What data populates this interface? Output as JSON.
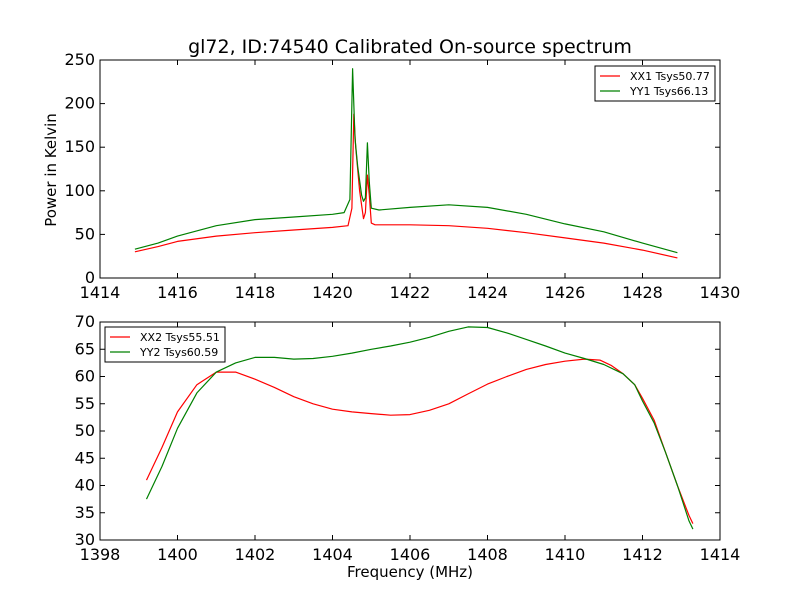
{
  "chart_data": [
    {
      "type": "line",
      "title": "gl72, ID:74540 Calibrated On-source spectrum",
      "xlabel": "",
      "ylabel": "Power in Kelvin",
      "xlim": [
        1414,
        1430
      ],
      "ylim": [
        0,
        250
      ],
      "xticks": [
        1414,
        1416,
        1418,
        1420,
        1422,
        1424,
        1426,
        1428,
        1430
      ],
      "yticks": [
        0,
        50,
        100,
        150,
        200,
        250
      ],
      "legend_position": "top-right",
      "grid": false,
      "series": [
        {
          "name": "XX1 Tsys50.77",
          "color": "#ff0000",
          "points": [
            [
              1414.9,
              30
            ],
            [
              1415.5,
              36
            ],
            [
              1416,
              42
            ],
            [
              1417,
              48
            ],
            [
              1418,
              52
            ],
            [
              1419,
              55
            ],
            [
              1420,
              58
            ],
            [
              1420.4,
              60
            ],
            [
              1420.5,
              80
            ],
            [
              1420.55,
              188
            ],
            [
              1420.6,
              150
            ],
            [
              1420.7,
              100
            ],
            [
              1420.8,
              68
            ],
            [
              1420.85,
              75
            ],
            [
              1420.9,
              118
            ],
            [
              1420.95,
              95
            ],
            [
              1421,
              63
            ],
            [
              1421.1,
              61
            ],
            [
              1422,
              61
            ],
            [
              1423,
              60
            ],
            [
              1424,
              57
            ],
            [
              1425,
              52
            ],
            [
              1426,
              46
            ],
            [
              1427,
              40
            ],
            [
              1428,
              32
            ],
            [
              1428.9,
              23
            ]
          ]
        },
        {
          "name": "YY1 Tsys66.13",
          "color": "#008000",
          "points": [
            [
              1414.9,
              33
            ],
            [
              1415.5,
              40
            ],
            [
              1416,
              48
            ],
            [
              1417,
              60
            ],
            [
              1418,
              67
            ],
            [
              1419,
              70
            ],
            [
              1420,
              73
            ],
            [
              1420.3,
              75
            ],
            [
              1420.45,
              90
            ],
            [
              1420.52,
              240
            ],
            [
              1420.58,
              160
            ],
            [
              1420.65,
              128
            ],
            [
              1420.75,
              95
            ],
            [
              1420.8,
              88
            ],
            [
              1420.85,
              92
            ],
            [
              1420.9,
              155
            ],
            [
              1420.95,
              110
            ],
            [
              1421,
              80
            ],
            [
              1421.2,
              78
            ],
            [
              1422,
              81
            ],
            [
              1423,
              84
            ],
            [
              1424,
              81
            ],
            [
              1425,
              73
            ],
            [
              1426,
              62
            ],
            [
              1427,
              53
            ],
            [
              1428,
              40
            ],
            [
              1428.9,
              29
            ]
          ]
        }
      ]
    },
    {
      "type": "line",
      "title": "",
      "xlabel": "Frequency (MHz)",
      "ylabel": "",
      "xlim": [
        1398,
        1414
      ],
      "ylim": [
        30,
        70
      ],
      "xticks": [
        1398,
        1400,
        1402,
        1404,
        1406,
        1408,
        1410,
        1412,
        1414
      ],
      "yticks": [
        30,
        35,
        40,
        45,
        50,
        55,
        60,
        65,
        70
      ],
      "legend_position": "top-left",
      "grid": false,
      "series": [
        {
          "name": "XX2 Tsys55.51",
          "color": "#ff0000",
          "points": [
            [
              1399.2,
              41
            ],
            [
              1399.6,
              47
            ],
            [
              1400,
              53.5
            ],
            [
              1400.5,
              58.5
            ],
            [
              1401,
              60.8
            ],
            [
              1401.5,
              60.8
            ],
            [
              1402,
              59.5
            ],
            [
              1402.5,
              58
            ],
            [
              1403,
              56.3
            ],
            [
              1403.5,
              55
            ],
            [
              1404,
              54
            ],
            [
              1404.5,
              53.5
            ],
            [
              1405,
              53.2
            ],
            [
              1405.5,
              52.9
            ],
            [
              1406,
              53
            ],
            [
              1406.5,
              53.8
            ],
            [
              1407,
              55
            ],
            [
              1407.5,
              56.8
            ],
            [
              1408,
              58.6
            ],
            [
              1408.5,
              60
            ],
            [
              1409,
              61.3
            ],
            [
              1409.5,
              62.2
            ],
            [
              1410,
              62.8
            ],
            [
              1410.5,
              63.2
            ],
            [
              1410.9,
              63
            ],
            [
              1411.2,
              62
            ],
            [
              1411.5,
              60.5
            ],
            [
              1411.8,
              58.5
            ],
            [
              1412,
              56
            ],
            [
              1412.3,
              52
            ],
            [
              1412.6,
              46
            ],
            [
              1412.9,
              40
            ],
            [
              1413.2,
              34.5
            ],
            [
              1413.3,
              33
            ]
          ]
        },
        {
          "name": "YY2 Tsys60.59",
          "color": "#008000",
          "points": [
            [
              1399.2,
              37.5
            ],
            [
              1399.6,
              43.5
            ],
            [
              1400,
              50.5
            ],
            [
              1400.5,
              57
            ],
            [
              1401,
              60.8
            ],
            [
              1401.5,
              62.5
            ],
            [
              1402,
              63.5
            ],
            [
              1402.5,
              63.5
            ],
            [
              1403,
              63.2
            ],
            [
              1403.5,
              63.3
            ],
            [
              1404,
              63.7
            ],
            [
              1404.5,
              64.3
            ],
            [
              1405,
              65
            ],
            [
              1405.5,
              65.6
            ],
            [
              1406,
              66.3
            ],
            [
              1406.5,
              67.2
            ],
            [
              1407,
              68.3
            ],
            [
              1407.5,
              69.1
            ],
            [
              1408,
              69
            ],
            [
              1408.5,
              68
            ],
            [
              1409,
              66.8
            ],
            [
              1409.5,
              65.6
            ],
            [
              1410,
              64.3
            ],
            [
              1410.5,
              63.3
            ],
            [
              1411,
              62.2
            ],
            [
              1411.5,
              60.5
            ],
            [
              1411.8,
              58.5
            ],
            [
              1412,
              55.5
            ],
            [
              1412.3,
              51.5
            ],
            [
              1412.6,
              46
            ],
            [
              1412.9,
              40
            ],
            [
              1413.2,
              33.5
            ],
            [
              1413.3,
              32
            ]
          ]
        }
      ]
    }
  ]
}
